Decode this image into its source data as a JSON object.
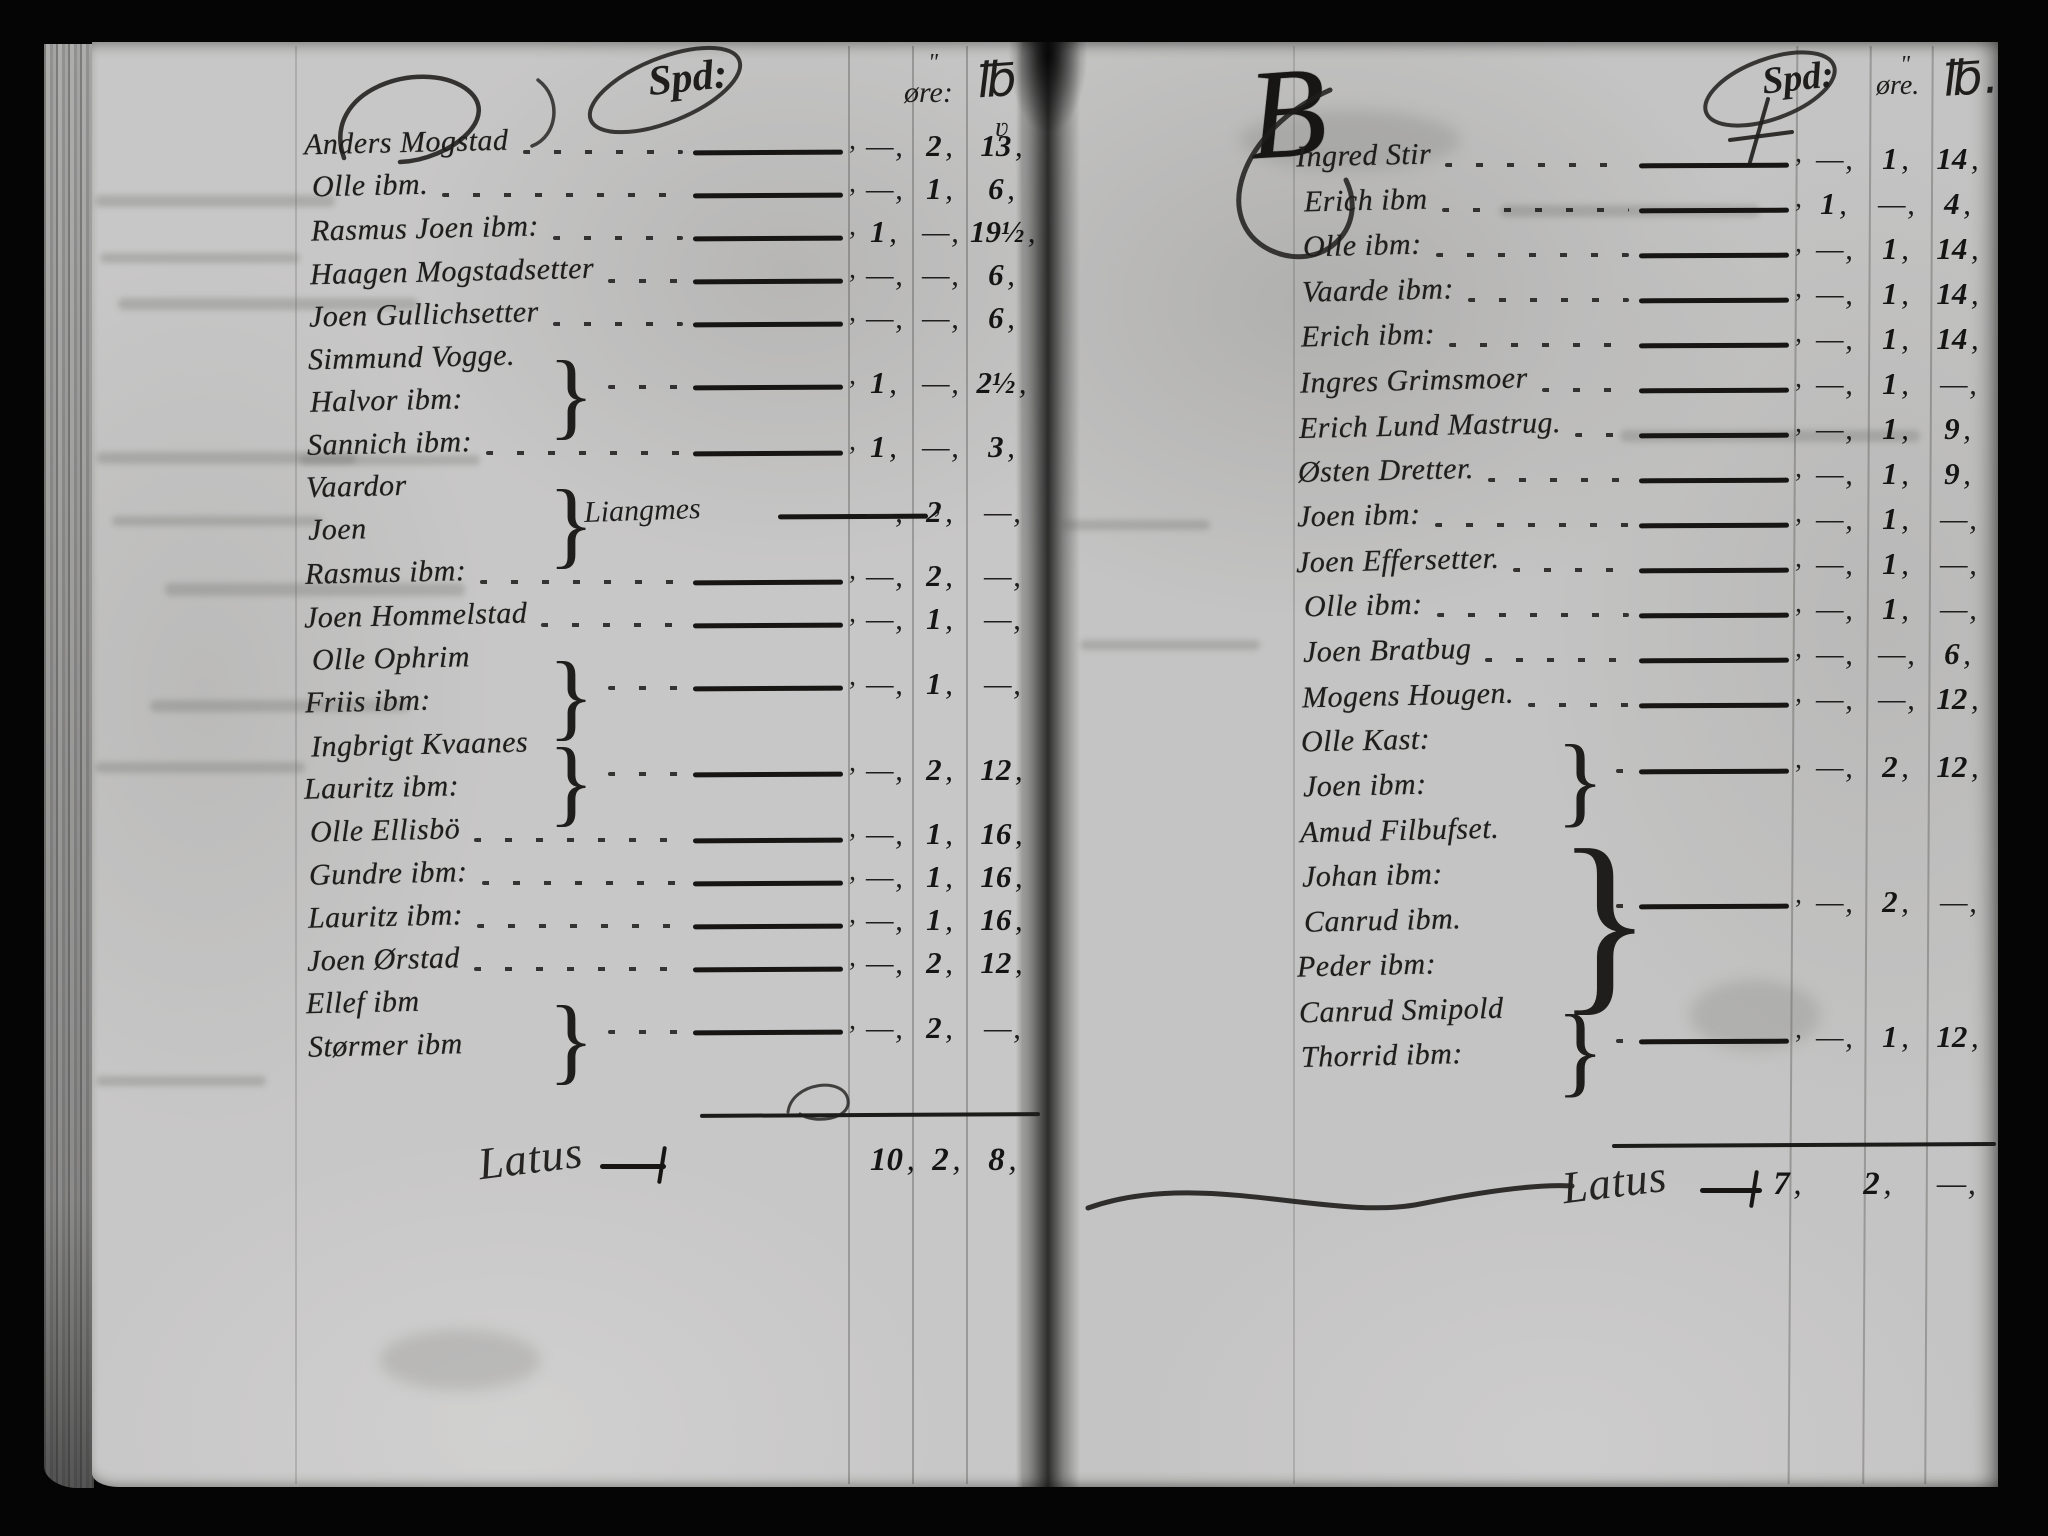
{
  "document": {
    "kind": "Archival scan of a handwritten tax ledger, two facing pages",
    "language": "Dano-Norwegian",
    "ink_color": "#231f1a",
    "paper_color": "#c7c6c2"
  },
  "left_page": {
    "header": {
      "col1": "Spd:",
      "col2": "øre:",
      "col3": "℔",
      "ditto": "\"",
      "under_mark": "ʋ"
    },
    "rows": [
      {
        "names": [
          "Anders Mogstad"
        ],
        "values": [
          "",
          "2",
          "13"
        ]
      },
      {
        "names": [
          "Olle ibm."
        ],
        "values": [
          "",
          "1",
          "6"
        ]
      },
      {
        "names": [
          "Rasmus Joen ibm:"
        ],
        "values": [
          "1",
          "",
          "19½"
        ]
      },
      {
        "names": [
          "Haagen Mogstadsetter"
        ],
        "values": [
          "",
          "",
          "6"
        ]
      },
      {
        "names": [
          "Joen Gullichsetter"
        ],
        "values": [
          "",
          "",
          "6"
        ]
      },
      {
        "names": [
          "Simmund Vogge.",
          "Halvor ibm:"
        ],
        "bracket": true,
        "values": [
          "1",
          "",
          "2½"
        ]
      },
      {
        "names": [
          "Sannich ibm:"
        ],
        "values": [
          "1",
          "",
          "3"
        ]
      },
      {
        "names": [
          "Vaardor",
          "Joen"
        ],
        "bracket": true,
        "side_label": "Liangmes",
        "values": [
          "",
          "2",
          ""
        ]
      },
      {
        "names": [
          "Rasmus ibm:"
        ],
        "values": [
          "",
          "2",
          ""
        ]
      },
      {
        "names": [
          "Joen Hommelstad"
        ],
        "values": [
          "",
          "1",
          ""
        ]
      },
      {
        "names": [
          "Olle Ophrim",
          "Friis ibm:"
        ],
        "bracket": true,
        "values": [
          "",
          "1",
          ""
        ]
      },
      {
        "names": [
          "Ingbrigt Kvaanes",
          "Lauritz ibm:"
        ],
        "bracket": true,
        "values": [
          "",
          "2",
          "12"
        ]
      },
      {
        "names": [
          "Olle Ellisbö"
        ],
        "values": [
          "",
          "1",
          "16"
        ]
      },
      {
        "names": [
          "Gundre ibm:"
        ],
        "values": [
          "",
          "1",
          "16"
        ]
      },
      {
        "names": [
          "Lauritz ibm:"
        ],
        "values": [
          "",
          "1",
          "16"
        ]
      },
      {
        "names": [
          "Joen Ørstad"
        ],
        "values": [
          "",
          "2",
          "12"
        ]
      },
      {
        "names": [
          "Ellef ibm",
          "Størmer ibm"
        ],
        "bracket": true,
        "values": [
          "",
          "2",
          ""
        ]
      }
    ],
    "latus": {
      "label": "Latus",
      "values": [
        "10",
        "2",
        "8"
      ]
    }
  },
  "right_page": {
    "initial": "B",
    "header": {
      "col1": "Spd:",
      "col2": "øre.",
      "col3": "℔.",
      "ditto": "\""
    },
    "rows": [
      {
        "names": [
          "Ingred Stir"
        ],
        "values": [
          "",
          "1",
          "14"
        ]
      },
      {
        "names": [
          "Erich ibm"
        ],
        "values": [
          "1",
          "",
          "4"
        ]
      },
      {
        "names": [
          "Olle ibm:"
        ],
        "values": [
          "",
          "1",
          "14"
        ]
      },
      {
        "names": [
          "Vaarde ibm:"
        ],
        "values": [
          "",
          "1",
          "14"
        ]
      },
      {
        "names": [
          "Erich ibm:"
        ],
        "values": [
          "",
          "1",
          "14"
        ]
      },
      {
        "names": [
          "Ingres Grimsmoer"
        ],
        "values": [
          "",
          "1",
          ""
        ]
      },
      {
        "names": [
          "Erich Lund Mastrug."
        ],
        "values": [
          "",
          "1",
          "9"
        ]
      },
      {
        "names": [
          "Østen Dretter."
        ],
        "values": [
          "",
          "1",
          "9"
        ]
      },
      {
        "names": [
          "Joen ibm:"
        ],
        "values": [
          "",
          "1",
          ""
        ]
      },
      {
        "names": [
          "Joen Effersetter."
        ],
        "values": [
          "",
          "1",
          ""
        ]
      },
      {
        "names": [
          "Olle ibm:"
        ],
        "values": [
          "",
          "1",
          ""
        ]
      },
      {
        "names": [
          "Joen Bratbug"
        ],
        "values": [
          "",
          "",
          "6"
        ]
      },
      {
        "names": [
          "Mogens Hougen."
        ],
        "values": [
          "",
          "",
          "12"
        ]
      },
      {
        "names": [
          "Olle Kast:",
          "Joen ibm:"
        ],
        "bracket": true,
        "values": [
          "",
          "2",
          "12"
        ]
      },
      {
        "names": [
          "Amud Filbufset.",
          "Johan ibm:",
          "Canrud ibm.",
          "Peder ibm:"
        ],
        "bracket": true,
        "values": [
          "",
          "2",
          ""
        ]
      },
      {
        "names": [
          "Canrud Smipold",
          "Thorrid ibm:"
        ],
        "bracket": true,
        "values": [
          "",
          "1",
          "12"
        ]
      }
    ],
    "latus": {
      "label": "Latus",
      "values": [
        "7",
        "2",
        ""
      ]
    }
  }
}
